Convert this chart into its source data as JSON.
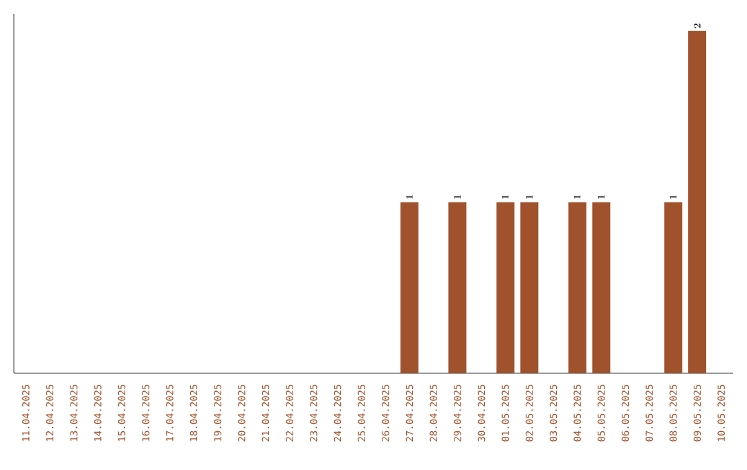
{
  "chart_data": {
    "type": "bar",
    "categories": [
      "11.04.2025",
      "12.04.2025",
      "13.04.2025",
      "14.04.2025",
      "15.04.2025",
      "16.04.2025",
      "17.04.2025",
      "18.04.2025",
      "19.04.2025",
      "20.04.2025",
      "21.04.2025",
      "22.04.2025",
      "23.04.2025",
      "24.04.2025",
      "25.04.2025",
      "26.04.2025",
      "27.04.2025",
      "28.04.2025",
      "29.04.2025",
      "30.04.2025",
      "01.05.2025",
      "02.05.2025",
      "03.05.2025",
      "04.05.2025",
      "05.05.2025",
      "06.05.2025",
      "07.05.2025",
      "08.05.2025",
      "09.05.2025",
      "10.05.2025"
    ],
    "values": [
      null,
      null,
      null,
      null,
      null,
      null,
      null,
      null,
      null,
      null,
      null,
      null,
      null,
      null,
      null,
      null,
      1,
      null,
      1,
      null,
      1,
      1,
      null,
      1,
      1,
      null,
      null,
      1,
      2,
      null
    ],
    "color": "#a0522d",
    "data_labels": true
  }
}
